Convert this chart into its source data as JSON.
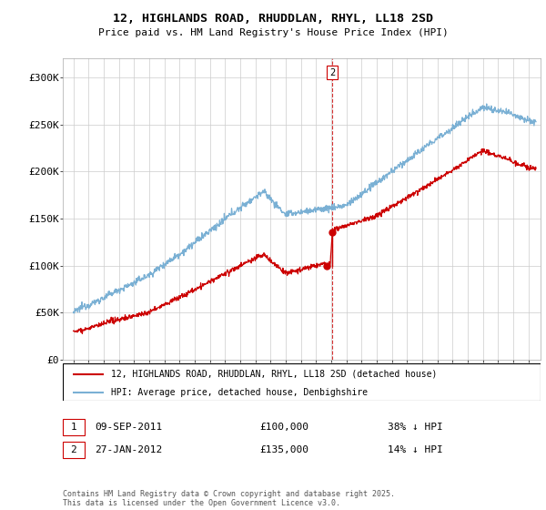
{
  "title_line1": "12, HIGHLANDS ROAD, RHUDDLAN, RHYL, LL18 2SD",
  "title_line2": "Price paid vs. HM Land Registry's House Price Index (HPI)",
  "ylim": [
    0,
    320000
  ],
  "yticks": [
    0,
    50000,
    100000,
    150000,
    200000,
    250000,
    300000
  ],
  "ytick_labels": [
    "£0",
    "£50K",
    "£100K",
    "£150K",
    "£200K",
    "£250K",
    "£300K"
  ],
  "hpi_color": "#7ab0d4",
  "price_color": "#cc0000",
  "dashed_line_color": "#cc0000",
  "legend_label_price": "12, HIGHLANDS ROAD, RHUDDLAN, RHYL, LL18 2SD (detached house)",
  "legend_label_hpi": "HPI: Average price, detached house, Denbighshire",
  "transaction1_label": "1",
  "transaction1_date": "09-SEP-2011",
  "transaction1_price": "£100,000",
  "transaction1_hpi": "38% ↓ HPI",
  "transaction2_label": "2",
  "transaction2_date": "27-JAN-2012",
  "transaction2_price": "£135,000",
  "transaction2_hpi": "14% ↓ HPI",
  "footnote": "Contains HM Land Registry data © Crown copyright and database right 2025.\nThis data is licensed under the Open Government Licence v3.0.",
  "vline_x": 2012.07,
  "marker1_x": 2011.69,
  "marker1_y": 100000,
  "marker2_x": 2012.07,
  "marker2_y": 135000,
  "xmin": 1995,
  "xmax": 2025.5
}
